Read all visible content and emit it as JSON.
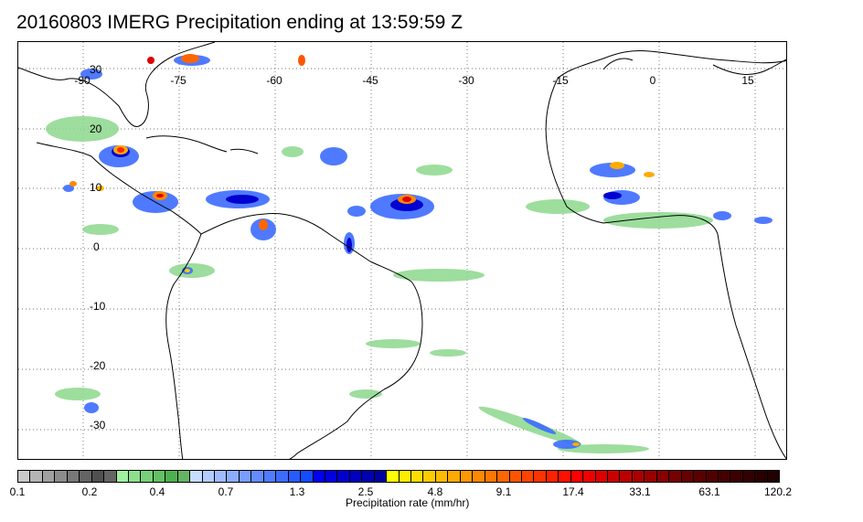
{
  "title": "20160803 IMERG Precipitation ending at 13:59:59 Z",
  "map": {
    "lon_labels": [
      "-90",
      "-75",
      "-60",
      "-45",
      "-30",
      "-15",
      "0",
      "15"
    ],
    "lat_labels": [
      "30",
      "20",
      "10",
      "0",
      "-10",
      "-20",
      "-30"
    ],
    "coastline_color": "#000000",
    "gridline_style": "dotted"
  },
  "colorbar": {
    "title": "Precipitation rate (mm/hr)",
    "tick_labels": [
      "0.1",
      "0.2",
      "0.4",
      "0.7",
      "1.3",
      "2.5",
      "4.8",
      "9.1",
      "17.4",
      "33.1",
      "63.1",
      "120.2"
    ],
    "colors": [
      "#c8c8c8",
      "#b4b4b4",
      "#a0a0a0",
      "#8c8c8c",
      "#787878",
      "#646464",
      "#505050",
      "#646464",
      "#a0f0a0",
      "#8ce08c",
      "#78d078",
      "#64c064",
      "#50b050",
      "#64b464",
      "#c8dcff",
      "#b4ccff",
      "#a0bcff",
      "#8cacff",
      "#789cff",
      "#648cff",
      "#507cff",
      "#3c6cff",
      "#285cff",
      "#144cff",
      "#0000f0",
      "#0000e0",
      "#0000d0",
      "#0000c0",
      "#0000b0",
      "#0000a0",
      "#ffff00",
      "#ffee00",
      "#ffdd00",
      "#ffcc00",
      "#ffbb00",
      "#ffaa00",
      "#ff9900",
      "#ff8800",
      "#ff7700",
      "#ff6600",
      "#ff5500",
      "#ff4400",
      "#ff3300",
      "#ff2200",
      "#ff1100",
      "#ff0000",
      "#ee0000",
      "#dd0000",
      "#cc0000",
      "#bb0000",
      "#aa0000",
      "#990000",
      "#880000",
      "#770000",
      "#660000",
      "#5a0000",
      "#500000",
      "#460000",
      "#3c0000",
      "#320000",
      "#280000",
      "#200000"
    ]
  }
}
